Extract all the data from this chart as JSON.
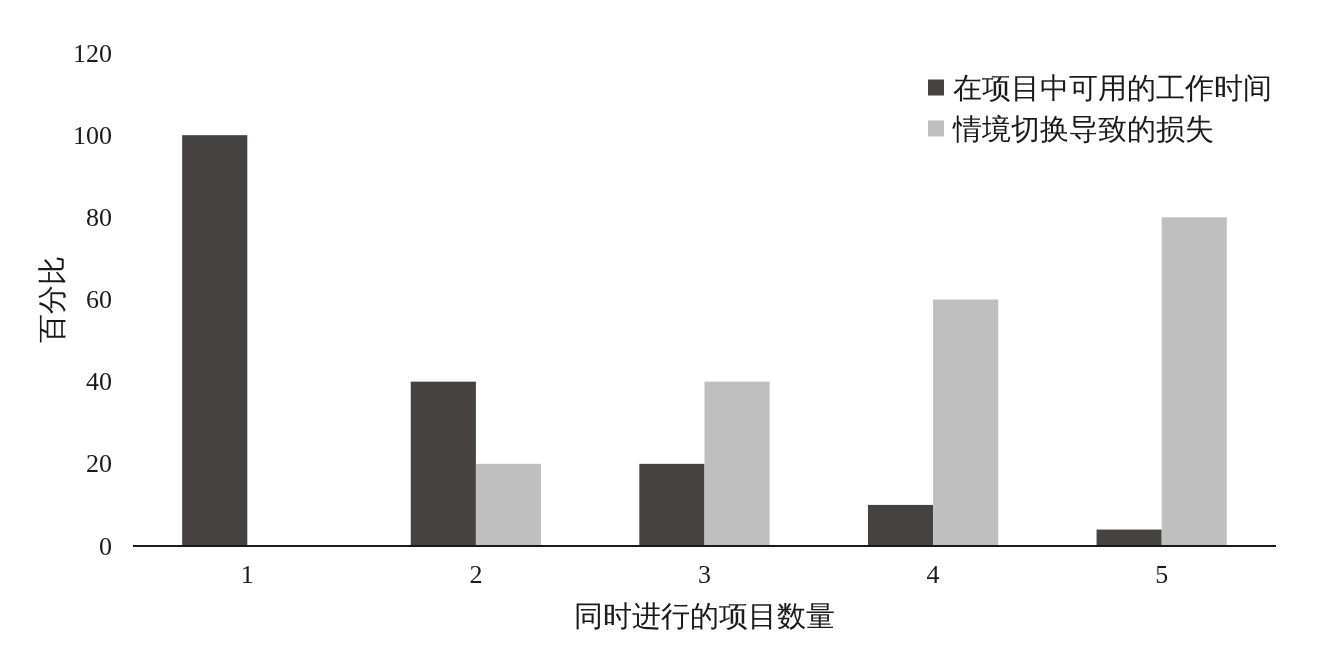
{
  "chart_data": {
    "type": "bar",
    "xlabel": "同时进行的项目数量",
    "ylabel": "百分比",
    "categories": [
      "1",
      "2",
      "3",
      "4",
      "5"
    ],
    "series": [
      {
        "name": "在项目中可用的工作时间",
        "color": "#464241",
        "values": [
          100,
          40,
          20,
          10,
          4
        ]
      },
      {
        "name": "情境切换导致的损失",
        "color": "#bfbfbf",
        "values": [
          0,
          20,
          40,
          60,
          80
        ]
      }
    ],
    "ylim": [
      0,
      120
    ],
    "yticks": [
      0,
      20,
      40,
      60,
      80,
      100,
      120
    ],
    "legend": "top right"
  }
}
